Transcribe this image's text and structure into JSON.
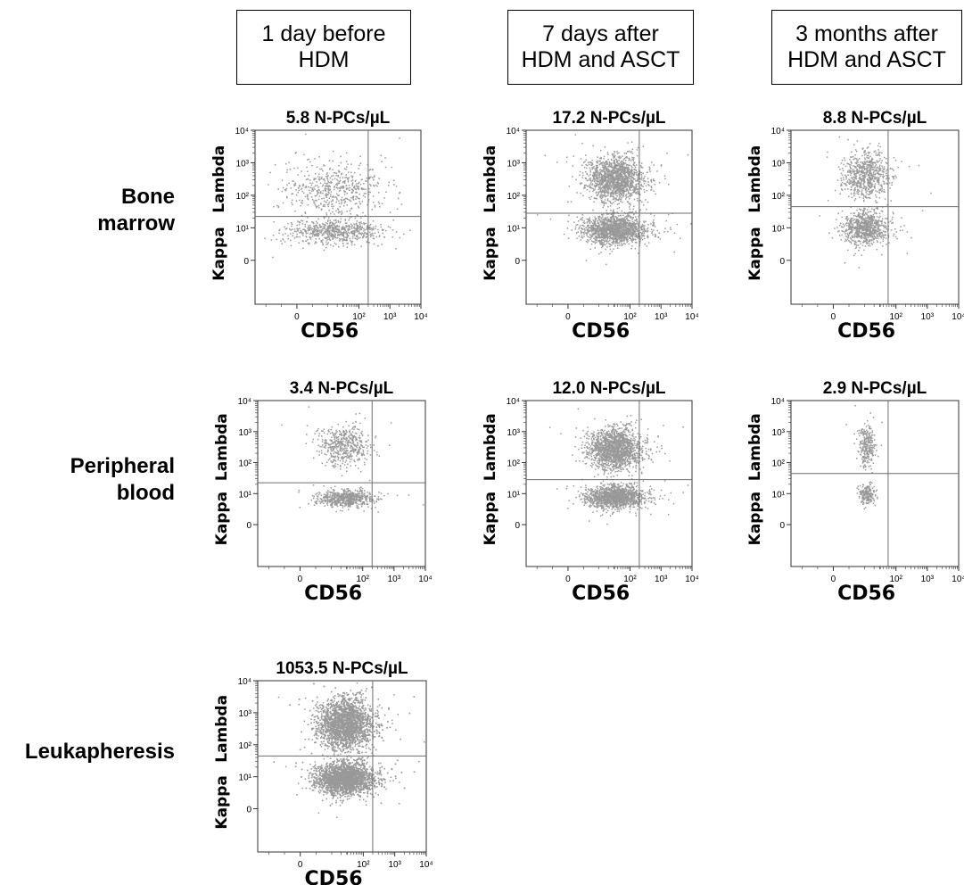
{
  "columns": [
    {
      "line1": "1 day before",
      "line2": "HDM"
    },
    {
      "line1": "7 days after",
      "line2": "HDM and ASCT"
    },
    {
      "line1": "3 months after",
      "line2": "HDM and ASCT"
    }
  ],
  "rows": [
    {
      "line1": "Bone",
      "line2": "marrow"
    },
    {
      "line1": "Peripheral",
      "line2": "blood"
    },
    {
      "line1": "Leukapheresis",
      "line2": ""
    }
  ],
  "colors": {
    "points": "#999999",
    "gate": "#6e6e6e",
    "axis": "#333333"
  },
  "chart_data": [
    {
      "id": "p11",
      "type": "scatter",
      "title": "5.8 N-PCs/µL",
      "xlabel": "CD56",
      "ylabel_top": "Lambda",
      "ylabel_bottom": "Kappa",
      "x_ticks": [
        "0",
        "10²",
        "10³",
        "10⁴"
      ],
      "y_ticks": [
        "0",
        "10¹",
        "10²",
        "10³",
        "10⁴"
      ],
      "x_scale": "biexponential (decades)",
      "y_scale": "biexponential (decades)",
      "gate": {
        "x_decades": 2.3,
        "y_decades": 1.35
      },
      "clusters": [
        {
          "name": "lambda",
          "n": 550,
          "cx": 1.2,
          "sx": 0.75,
          "cy": 2.2,
          "sy": 0.42
        },
        {
          "name": "kappa",
          "n": 650,
          "cx": 1.2,
          "sx": 0.75,
          "cy": 0.9,
          "sy": 0.18
        }
      ]
    },
    {
      "id": "p12",
      "type": "scatter",
      "title": "17.2 N-PCs/µL",
      "xlabel": "CD56",
      "ylabel_top": "Lambda",
      "ylabel_bottom": "Kappa",
      "x_ticks": [
        "0",
        "10²",
        "10³",
        "10⁴"
      ],
      "y_ticks": [
        "0",
        "10¹",
        "10²",
        "10³",
        "10⁴"
      ],
      "x_scale": "biexponential (decades)",
      "y_scale": "biexponential (decades)",
      "gate": {
        "x_decades": 2.3,
        "y_decades": 1.45
      },
      "clusters": [
        {
          "name": "lambda",
          "n": 1500,
          "cx": 1.5,
          "sx": 0.45,
          "cy": 2.5,
          "sy": 0.35
        },
        {
          "name": "kappa",
          "n": 1500,
          "cx": 1.5,
          "sx": 0.5,
          "cy": 0.95,
          "sy": 0.22
        }
      ]
    },
    {
      "id": "p13",
      "type": "scatter",
      "title": "8.8 N-PCs/µL",
      "xlabel": "CD56",
      "ylabel_top": "Lambda",
      "ylabel_bottom": "Kappa",
      "x_ticks": [
        "0",
        "10²",
        "10³",
        "10⁴"
      ],
      "y_ticks": [
        "0",
        "10¹",
        "10²",
        "10³",
        "10⁴"
      ],
      "x_scale": "biexponential (decades)",
      "y_scale": "biexponential (decades)",
      "gate": {
        "x_decades": 1.75,
        "y_decades": 1.65
      },
      "clusters": [
        {
          "name": "lambda",
          "n": 700,
          "cx": 1.0,
          "sx": 0.35,
          "cy": 2.6,
          "sy": 0.38
        },
        {
          "name": "kappa",
          "n": 800,
          "cx": 1.0,
          "sx": 0.35,
          "cy": 1.0,
          "sy": 0.25
        }
      ]
    },
    {
      "id": "p21",
      "type": "scatter",
      "title": "3.4 N-PCs/µL",
      "xlabel": "CD56",
      "ylabel_top": "Lambda",
      "ylabel_bottom": "Kappa",
      "x_ticks": [
        "0",
        "10²",
        "10³",
        "10⁴"
      ],
      "y_ticks": [
        "0",
        "10¹",
        "10²",
        "10³",
        "10⁴"
      ],
      "x_scale": "biexponential (decades)",
      "y_scale": "biexponential (decades)",
      "gate": {
        "x_decades": 2.3,
        "y_decades": 1.35
      },
      "clusters": [
        {
          "name": "lambda",
          "n": 500,
          "cx": 1.4,
          "sx": 0.4,
          "cy": 2.55,
          "sy": 0.32
        },
        {
          "name": "kappa",
          "n": 650,
          "cx": 1.4,
          "sx": 0.42,
          "cy": 0.85,
          "sy": 0.14
        }
      ]
    },
    {
      "id": "p22",
      "type": "scatter",
      "title": "12.0 N-PCs/µL",
      "xlabel": "CD56",
      "ylabel_top": "Lambda",
      "ylabel_bottom": "Kappa",
      "x_ticks": [
        "0",
        "10²",
        "10³",
        "10⁴"
      ],
      "y_ticks": [
        "0",
        "10¹",
        "10²",
        "10³",
        "10⁴"
      ],
      "x_scale": "biexponential (decades)",
      "y_scale": "biexponential (decades)",
      "gate": {
        "x_decades": 2.3,
        "y_decades": 1.45
      },
      "clusters": [
        {
          "name": "lambda",
          "n": 1600,
          "cx": 1.5,
          "sx": 0.42,
          "cy": 2.45,
          "sy": 0.33
        },
        {
          "name": "kappa",
          "n": 1400,
          "cx": 1.5,
          "sx": 0.45,
          "cy": 0.9,
          "sy": 0.18
        }
      ]
    },
    {
      "id": "p23",
      "type": "scatter",
      "title": "2.9 N-PCs/µL",
      "xlabel": "CD56",
      "ylabel_top": "Lambda",
      "ylabel_bottom": "Kappa",
      "x_ticks": [
        "0",
        "10²",
        "10³",
        "10⁴"
      ],
      "y_ticks": [
        "0",
        "10¹",
        "10²",
        "10³",
        "10⁴"
      ],
      "x_scale": "biexponential (decades)",
      "y_scale": "biexponential (decades)",
      "gate": {
        "x_decades": 1.75,
        "y_decades": 1.65
      },
      "clusters": [
        {
          "name": "lambda",
          "n": 260,
          "cx": 1.05,
          "sx": 0.13,
          "cy": 2.55,
          "sy": 0.33
        },
        {
          "name": "kappa",
          "n": 200,
          "cx": 1.05,
          "sx": 0.13,
          "cy": 1.0,
          "sy": 0.16
        }
      ]
    },
    {
      "id": "p31",
      "type": "scatter",
      "title": "1053.5 N-PCs/µL",
      "xlabel": "CD56",
      "ylabel_top": "Lambda",
      "ylabel_bottom": "Kappa",
      "x_ticks": [
        "0",
        "10²",
        "10³",
        "10⁴"
      ],
      "y_ticks": [
        "0",
        "10¹",
        "10²",
        "10³",
        "10⁴"
      ],
      "x_scale": "biexponential (decades)",
      "y_scale": "biexponential (decades)",
      "gate": {
        "x_decades": 2.3,
        "y_decades": 1.65
      },
      "clusters": [
        {
          "name": "lambda",
          "n": 3500,
          "cx": 1.4,
          "sx": 0.42,
          "cy": 2.65,
          "sy": 0.4
        },
        {
          "name": "kappa",
          "n": 3500,
          "cx": 1.4,
          "sx": 0.45,
          "cy": 0.95,
          "sy": 0.25
        }
      ]
    }
  ]
}
